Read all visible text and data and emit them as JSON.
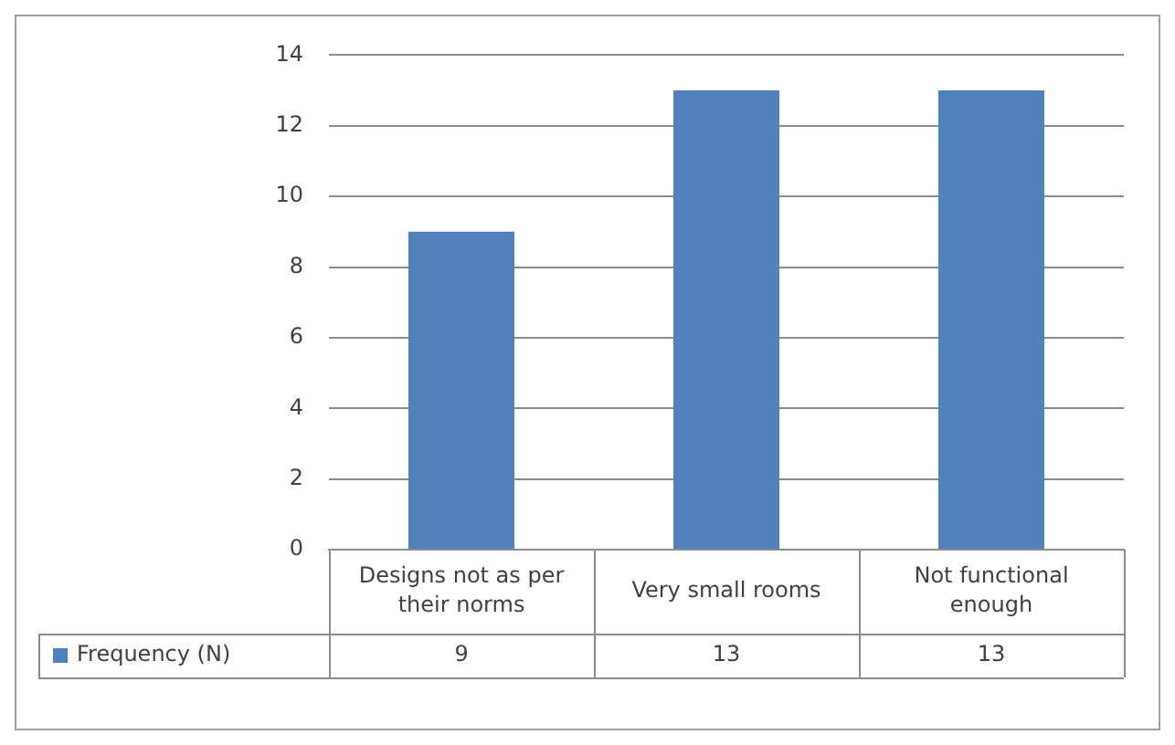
{
  "chart_data": {
    "type": "bar",
    "categories": [
      "Designs not as per their norms",
      "Very small rooms",
      "Not functional enough"
    ],
    "series": [
      {
        "name": "Frequency (N)",
        "color": "#4f81bd",
        "values": [
          9,
          13,
          13
        ]
      }
    ],
    "ylim": [
      0,
      14
    ],
    "yticks": [
      0,
      2,
      4,
      6,
      8,
      10,
      12,
      14
    ],
    "grid": "y",
    "legend": "bottom left",
    "data_labels": true
  }
}
